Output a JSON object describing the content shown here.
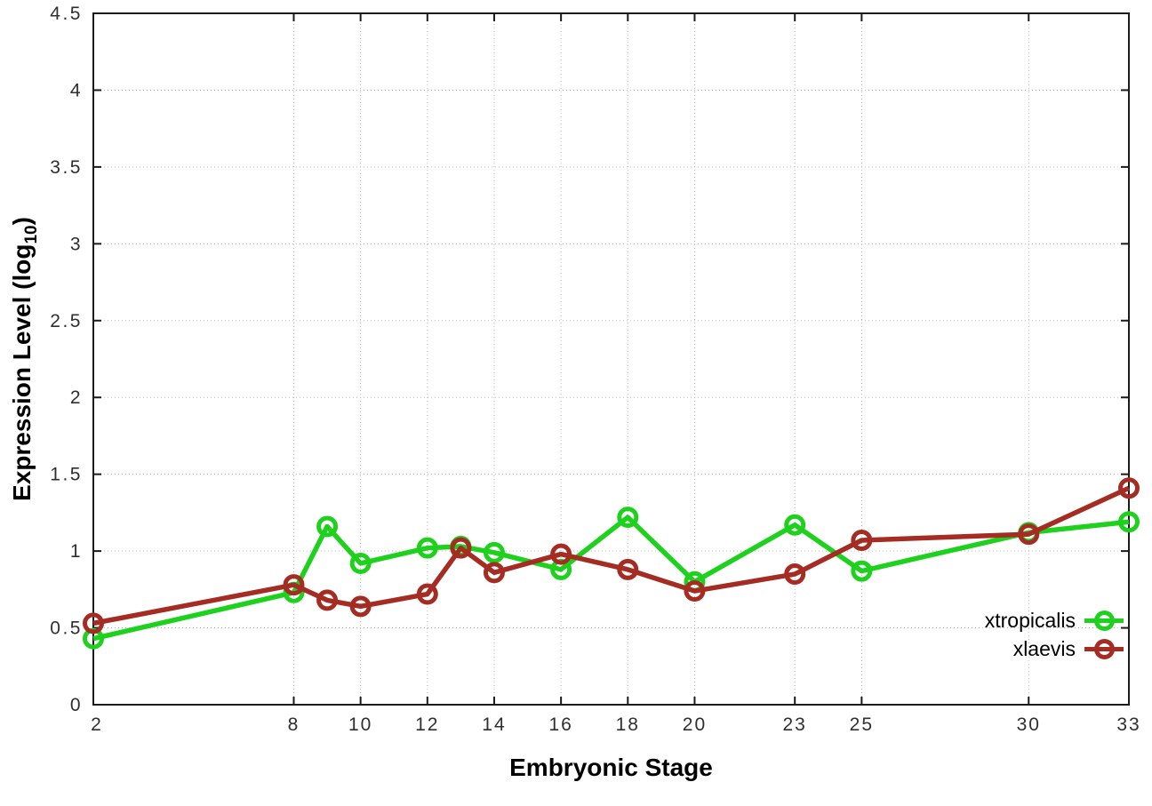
{
  "chart_data": {
    "type": "line",
    "x": [
      2,
      8,
      9,
      10,
      12,
      13,
      14,
      16,
      18,
      20,
      23,
      25,
      30,
      33
    ],
    "series": [
      {
        "name": "xtropicalis",
        "color": "#1dd11d",
        "values": [
          0.43,
          0.73,
          1.16,
          0.92,
          1.02,
          1.03,
          0.99,
          0.88,
          1.22,
          0.8,
          1.17,
          0.87,
          1.12,
          1.19
        ]
      },
      {
        "name": "xlaevis",
        "color": "#a52c23",
        "values": [
          0.53,
          0.78,
          0.68,
          0.64,
          0.72,
          1.02,
          0.86,
          0.98,
          0.88,
          0.74,
          0.85,
          1.07,
          1.11,
          1.41
        ]
      }
    ],
    "title": "",
    "xlabel": "Embryonic Stage",
    "ylabel": "Expression Level (log10)",
    "ylabel_parts": {
      "main": "Expression Level (log",
      "sub": "10",
      "end": ")"
    },
    "xlim": [
      2,
      33
    ],
    "ylim": [
      0,
      4.5
    ],
    "xticks": {
      "values": [
        2,
        8,
        10,
        12,
        14,
        16,
        18,
        20,
        23,
        25,
        30,
        33
      ],
      "labels": [
        "2",
        "8",
        "10",
        "12",
        "14",
        "16",
        "18",
        "20",
        "23",
        "25",
        "30",
        "33"
      ]
    },
    "yticks": {
      "values": [
        0,
        0.5,
        1,
        1.5,
        2,
        2.5,
        3,
        3.5,
        4,
        4.5
      ],
      "labels": [
        "0",
        "0.5",
        "1",
        "1.5",
        "2",
        "2.5",
        "3",
        "3.5",
        "4",
        "4.5"
      ]
    },
    "grid": true,
    "legend_position": "inside bottom right",
    "marker": "open-circle",
    "colors": {
      "grid": "#bdbdbd",
      "border": "#1b1b1b",
      "tick_text": "#2f2f2f",
      "axis_label_text": "#000000"
    }
  },
  "legend": {
    "entries": [
      {
        "label": "xtropicalis",
        "color": "#1dd11d"
      },
      {
        "label": "xlaevis",
        "color": "#a52c23"
      }
    ]
  }
}
